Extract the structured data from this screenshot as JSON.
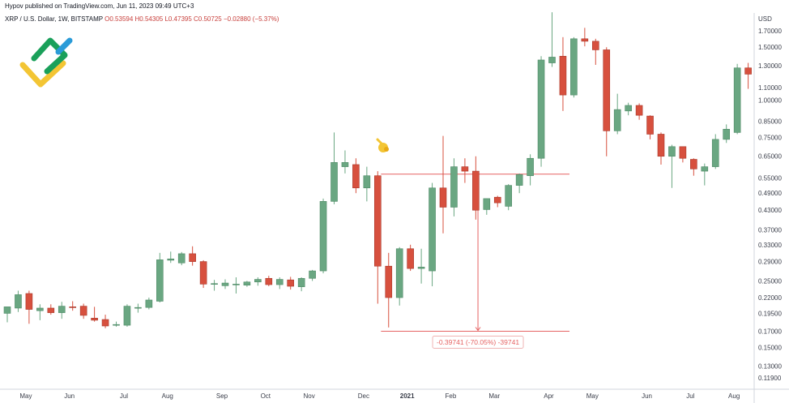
{
  "header": {
    "publisher": "Hypov published on TradingView.com, Jun 11, 2023 09:49 UTC+3",
    "symbol": "XRP / U.S. Dollar, 1W, BITSTAMP",
    "ohlc": "O0.53594  H0.54305  L0.47395  C0.50725  −0.02880 (−5.37%)"
  },
  "logo": {
    "icon": "LiteFinance logo"
  },
  "colors": {
    "up": "#6aa782",
    "down": "#d7503e",
    "measure": "#e56262",
    "axis_text": "#3a3e4a"
  },
  "chart_data": {
    "type": "candlestick",
    "y_axis": {
      "currency": "USD",
      "scale": "log",
      "range": [
        0.105,
        1.9
      ],
      "ticks": [
        "1.70000",
        "1.50000",
        "1.30000",
        "1.10000",
        "1.00000",
        "0.85000",
        "0.75000",
        "0.65000",
        "0.55000",
        "0.49000",
        "0.43000",
        "0.37000",
        "0.33000",
        "0.29000",
        "0.25000",
        "0.22000",
        "0.19500",
        "0.17000",
        "0.15000",
        "0.13000",
        "0.11900"
      ]
    },
    "x_axis": {
      "labels": [
        "May",
        "Jun",
        "Jul",
        "Aug",
        "Sep",
        "Oct",
        "Nov",
        "Dec",
        "2021",
        "Feb",
        "Mar",
        "Apr",
        "May",
        "Jun",
        "Jul",
        "Aug"
      ]
    },
    "candles": [
      {
        "o": 0.195,
        "h": 0.205,
        "l": 0.182,
        "c": 0.205
      },
      {
        "o": 0.203,
        "h": 0.232,
        "l": 0.197,
        "c": 0.225
      },
      {
        "o": 0.227,
        "h": 0.232,
        "l": 0.18,
        "c": 0.201
      },
      {
        "o": 0.199,
        "h": 0.209,
        "l": 0.185,
        "c": 0.203
      },
      {
        "o": 0.203,
        "h": 0.209,
        "l": 0.193,
        "c": 0.196
      },
      {
        "o": 0.196,
        "h": 0.213,
        "l": 0.187,
        "c": 0.206
      },
      {
        "o": 0.205,
        "h": 0.214,
        "l": 0.199,
        "c": 0.204
      },
      {
        "o": 0.206,
        "h": 0.21,
        "l": 0.187,
        "c": 0.192
      },
      {
        "o": 0.188,
        "h": 0.205,
        "l": 0.183,
        "c": 0.185
      },
      {
        "o": 0.186,
        "h": 0.193,
        "l": 0.174,
        "c": 0.177
      },
      {
        "o": 0.178,
        "h": 0.183,
        "l": 0.176,
        "c": 0.179
      },
      {
        "o": 0.178,
        "h": 0.209,
        "l": 0.176,
        "c": 0.206
      },
      {
        "o": 0.203,
        "h": 0.21,
        "l": 0.196,
        "c": 0.204
      },
      {
        "o": 0.204,
        "h": 0.22,
        "l": 0.201,
        "c": 0.216
      },
      {
        "o": 0.214,
        "h": 0.31,
        "l": 0.212,
        "c": 0.294
      },
      {
        "o": 0.293,
        "h": 0.313,
        "l": 0.287,
        "c": 0.296
      },
      {
        "o": 0.287,
        "h": 0.312,
        "l": 0.282,
        "c": 0.308
      },
      {
        "o": 0.308,
        "h": 0.326,
        "l": 0.281,
        "c": 0.29
      },
      {
        "o": 0.29,
        "h": 0.293,
        "l": 0.237,
        "c": 0.244
      },
      {
        "o": 0.244,
        "h": 0.252,
        "l": 0.232,
        "c": 0.245
      },
      {
        "o": 0.241,
        "h": 0.253,
        "l": 0.235,
        "c": 0.246
      },
      {
        "o": 0.243,
        "h": 0.257,
        "l": 0.227,
        "c": 0.244
      },
      {
        "o": 0.242,
        "h": 0.25,
        "l": 0.239,
        "c": 0.248
      },
      {
        "o": 0.248,
        "h": 0.257,
        "l": 0.241,
        "c": 0.253
      },
      {
        "o": 0.255,
        "h": 0.26,
        "l": 0.24,
        "c": 0.243
      },
      {
        "o": 0.243,
        "h": 0.257,
        "l": 0.235,
        "c": 0.253
      },
      {
        "o": 0.252,
        "h": 0.258,
        "l": 0.234,
        "c": 0.24
      },
      {
        "o": 0.239,
        "h": 0.257,
        "l": 0.231,
        "c": 0.255
      },
      {
        "o": 0.255,
        "h": 0.272,
        "l": 0.25,
        "c": 0.27
      },
      {
        "o": 0.27,
        "h": 0.47,
        "l": 0.265,
        "c": 0.46
      },
      {
        "o": 0.46,
        "h": 0.78,
        "l": 0.45,
        "c": 0.62
      },
      {
        "o": 0.6,
        "h": 0.68,
        "l": 0.57,
        "c": 0.62
      },
      {
        "o": 0.61,
        "h": 0.64,
        "l": 0.49,
        "c": 0.51
      },
      {
        "o": 0.51,
        "h": 0.6,
        "l": 0.46,
        "c": 0.56
      },
      {
        "o": 0.56,
        "h": 0.58,
        "l": 0.21,
        "c": 0.28
      },
      {
        "o": 0.28,
        "h": 0.31,
        "l": 0.175,
        "c": 0.22
      },
      {
        "o": 0.22,
        "h": 0.324,
        "l": 0.207,
        "c": 0.32
      },
      {
        "o": 0.32,
        "h": 0.33,
        "l": 0.27,
        "c": 0.275
      },
      {
        "o": 0.275,
        "h": 0.32,
        "l": 0.245,
        "c": 0.278
      },
      {
        "o": 0.27,
        "h": 0.53,
        "l": 0.24,
        "c": 0.51
      },
      {
        "o": 0.51,
        "h": 0.76,
        "l": 0.36,
        "c": 0.44
      },
      {
        "o": 0.44,
        "h": 0.64,
        "l": 0.41,
        "c": 0.6
      },
      {
        "o": 0.6,
        "h": 0.64,
        "l": 0.53,
        "c": 0.58
      },
      {
        "o": 0.58,
        "h": 0.65,
        "l": 0.4,
        "c": 0.43
      },
      {
        "o": 0.432,
        "h": 0.47,
        "l": 0.415,
        "c": 0.47
      },
      {
        "o": 0.475,
        "h": 0.48,
        "l": 0.44,
        "c": 0.455
      },
      {
        "o": 0.443,
        "h": 0.525,
        "l": 0.43,
        "c": 0.52
      },
      {
        "o": 0.52,
        "h": 0.57,
        "l": 0.49,
        "c": 0.565
      },
      {
        "o": 0.56,
        "h": 0.66,
        "l": 0.52,
        "c": 0.64
      },
      {
        "o": 0.64,
        "h": 1.4,
        "l": 0.6,
        "c": 1.36
      },
      {
        "o": 1.33,
        "h": 1.96,
        "l": 1.29,
        "c": 1.39
      },
      {
        "o": 1.4,
        "h": 1.62,
        "l": 0.92,
        "c": 1.04
      },
      {
        "o": 1.04,
        "h": 1.62,
        "l": 1.02,
        "c": 1.6
      },
      {
        "o": 1.6,
        "h": 1.74,
        "l": 1.51,
        "c": 1.57
      },
      {
        "o": 1.57,
        "h": 1.6,
        "l": 1.31,
        "c": 1.47
      },
      {
        "o": 1.47,
        "h": 1.5,
        "l": 0.65,
        "c": 0.79
      },
      {
        "o": 0.79,
        "h": 1.05,
        "l": 0.77,
        "c": 0.93
      },
      {
        "o": 0.92,
        "h": 0.98,
        "l": 0.89,
        "c": 0.96
      },
      {
        "o": 0.96,
        "h": 0.975,
        "l": 0.86,
        "c": 0.89
      },
      {
        "o": 0.885,
        "h": 0.89,
        "l": 0.74,
        "c": 0.77
      },
      {
        "o": 0.77,
        "h": 0.78,
        "l": 0.61,
        "c": 0.65
      },
      {
        "o": 0.65,
        "h": 0.71,
        "l": 0.51,
        "c": 0.7
      },
      {
        "o": 0.7,
        "h": 0.7,
        "l": 0.62,
        "c": 0.64
      },
      {
        "o": 0.635,
        "h": 0.64,
        "l": 0.56,
        "c": 0.59
      },
      {
        "o": 0.58,
        "h": 0.615,
        "l": 0.52,
        "c": 0.6
      },
      {
        "o": 0.6,
        "h": 0.77,
        "l": 0.59,
        "c": 0.74
      },
      {
        "o": 0.74,
        "h": 0.83,
        "l": 0.72,
        "c": 0.8
      },
      {
        "o": 0.78,
        "h": 1.32,
        "l": 0.77,
        "c": 1.28
      },
      {
        "o": 1.28,
        "h": 1.33,
        "l": 1.09,
        "c": 1.22
      }
    ],
    "measure": {
      "from_price": 0.567,
      "to_price": 0.17,
      "label": "-0.39741 (-70.05%) -39741"
    }
  }
}
